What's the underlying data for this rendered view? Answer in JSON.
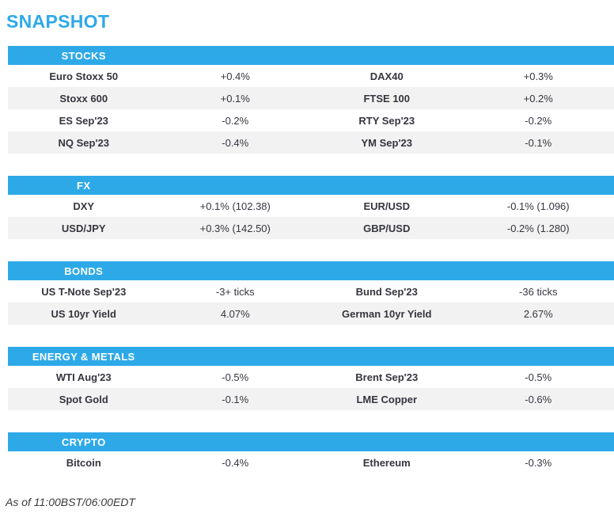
{
  "page": {
    "title": "SNAPSHOT",
    "footer": "As of 11:00BST/06:00EDT"
  },
  "colors": {
    "accent_blue": "#2ea9e8",
    "row_alt_bg": "#f2f2f2",
    "text_dark": "#35353f",
    "header_text": "#ffffff",
    "footer_text": "#3a3a3a"
  },
  "sections": [
    {
      "id": "stocks",
      "label": "STOCKS",
      "rows": [
        [
          "Euro Stoxx 50",
          "+0.4%",
          "DAX40",
          "+0.3%"
        ],
        [
          "Stoxx 600",
          "+0.1%",
          "FTSE 100",
          "+0.2%"
        ],
        [
          "ES Sep'23",
          "-0.2%",
          "RTY Sep'23",
          "-0.2%"
        ],
        [
          "NQ Sep'23",
          "-0.4%",
          "YM Sep'23",
          "-0.1%"
        ]
      ]
    },
    {
      "id": "fx",
      "label": "FX",
      "rows": [
        [
          "DXY",
          "+0.1% (102.38)",
          "EUR/USD",
          "-0.1% (1.096)"
        ],
        [
          "USD/JPY",
          "+0.3% (142.50)",
          "GBP/USD",
          "-0.2% (1.280)"
        ]
      ]
    },
    {
      "id": "bonds",
      "label": "BONDS",
      "rows": [
        [
          "US T-Note Sep'23",
          "-3+ ticks",
          "Bund Sep'23",
          "-36 ticks"
        ],
        [
          "US 10yr Yield",
          "4.07%",
          "German 10yr Yield",
          "2.67%"
        ]
      ]
    },
    {
      "id": "energy-metals",
      "label": "ENERGY & METALS",
      "rows": [
        [
          "WTI Aug'23",
          "-0.5%",
          "Brent Sep'23",
          "-0.5%"
        ],
        [
          "Spot Gold",
          "-0.1%",
          "LME Copper",
          "-0.6%"
        ]
      ]
    },
    {
      "id": "crypto",
      "label": "CRYPTO",
      "rows": [
        [
          "Bitcoin",
          "-0.4%",
          "Ethereum",
          "-0.3%"
        ]
      ]
    }
  ]
}
